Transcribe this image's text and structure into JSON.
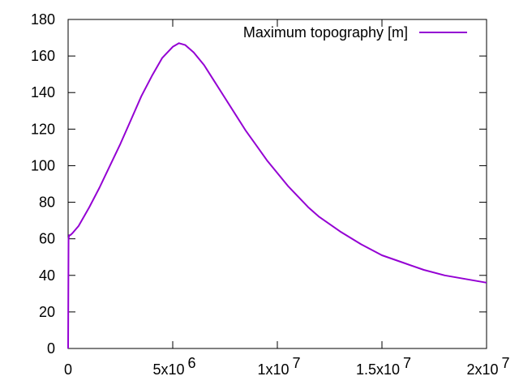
{
  "chart_data": {
    "type": "line",
    "title": "",
    "xlabel": "",
    "ylabel": "",
    "xlim": [
      0,
      20000000
    ],
    "ylim": [
      0,
      180
    ],
    "grid": false,
    "legend_position": "top-right",
    "x_ticks": [
      {
        "value": 0,
        "mantissa": "0",
        "exponent": ""
      },
      {
        "value": 5000000,
        "mantissa": "5x10",
        "exponent": "6"
      },
      {
        "value": 10000000,
        "mantissa": "1x10",
        "exponent": "7"
      },
      {
        "value": 15000000,
        "mantissa": "1.5x10",
        "exponent": "7"
      },
      {
        "value": 20000000,
        "mantissa": "2x10",
        "exponent": "7"
      }
    ],
    "y_ticks": [
      "0",
      "20",
      "40",
      "60",
      "80",
      "100",
      "120",
      "140",
      "160",
      "180"
    ],
    "series": [
      {
        "name": "Maximum topography [m]",
        "color": "#9400d3",
        "x": [
          0,
          20000,
          50000,
          100000,
          200000,
          500000,
          1000000,
          1500000,
          2000000,
          2500000,
          3000000,
          3500000,
          4000000,
          4500000,
          5000000,
          5300000,
          5600000,
          6000000,
          6500000,
          7000000,
          7500000,
          8000000,
          8500000,
          9000000,
          9500000,
          10000000,
          10500000,
          11000000,
          11500000,
          12000000,
          13000000,
          14000000,
          15000000,
          16000000,
          17000000,
          18000000,
          19000000,
          20000000
        ],
        "y": [
          0,
          60,
          62,
          62,
          63,
          67,
          77,
          88,
          100,
          112,
          125,
          138,
          149,
          159,
          165,
          167,
          166,
          162,
          155,
          146,
          137,
          128,
          119,
          111,
          103,
          96,
          89,
          83,
          77,
          72,
          64,
          57,
          51,
          47,
          43,
          40,
          38,
          36
        ]
      }
    ]
  }
}
